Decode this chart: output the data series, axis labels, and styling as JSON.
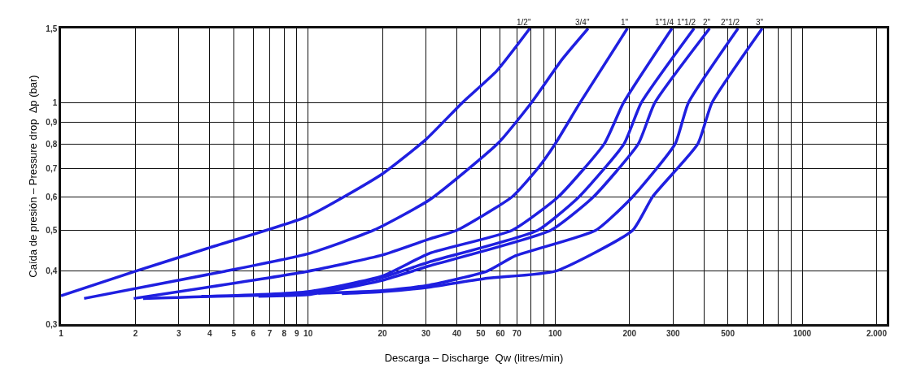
{
  "chart_data": {
    "type": "line",
    "xlabel": "Descarga – Discharge  Qw (litres/min)",
    "ylabel": "Caída de presión – Pressure drop  Δp (bar)",
    "log": "xy",
    "grid": true,
    "legend": false,
    "marker": "none",
    "line_style": "solid",
    "xlim": [
      1,
      2200
    ],
    "ylim": [
      0.3,
      1.5
    ],
    "xticks": [
      1,
      2,
      3,
      4,
      5,
      6,
      7,
      8,
      9,
      10,
      20,
      30,
      40,
      50,
      60,
      70,
      {
        "value": 80,
        "label": null
      },
      {
        "value": 90,
        "label": null
      },
      100,
      200,
      300,
      {
        "value": 400,
        "label": null
      },
      500,
      {
        "value": 600,
        "label": null
      },
      {
        "value": 700,
        "label": null
      },
      {
        "value": 800,
        "label": null
      },
      {
        "value": 900,
        "label": null
      },
      1000,
      {
        "value": 2000,
        "label": "2.000"
      }
    ],
    "yticks": [
      {
        "value": 0.3,
        "label": "0,3"
      },
      {
        "value": 0.4,
        "label": "0,4"
      },
      {
        "value": 0.5,
        "label": "0,5"
      },
      {
        "value": 0.6,
        "label": "0,6"
      },
      {
        "value": 0.7,
        "label": "0,7"
      },
      {
        "value": 0.8,
        "label": "0,8"
      },
      {
        "value": 0.9,
        "label": "0,9"
      },
      1,
      {
        "value": 1.5,
        "label": "1,5"
      }
    ],
    "series": [
      {
        "name": "1/2\"",
        "color": "#1f1fe0",
        "x": [
          1,
          2,
          4,
          10,
          20,
          30,
          42,
          58,
          79
        ],
        "values": [
          0.35,
          0.4,
          0.455,
          0.54,
          0.68,
          0.82,
          1.0,
          1.19,
          1.5
        ]
      },
      {
        "name": "3/4\"",
        "color": "#1f1fe0",
        "x": [
          1.24,
          4.6,
          10,
          18.4,
          31,
          59,
          80,
          107,
          136
        ],
        "values": [
          0.345,
          0.4,
          0.44,
          0.5,
          0.59,
          0.805,
          1.0,
          1.27,
          1.5
        ]
      },
      {
        "name": "1\"",
        "color": "#1f1fe0",
        "x": [
          1.97,
          10,
          20,
          31,
          40,
          67,
          85,
          100,
          126,
          196
        ],
        "values": [
          0.345,
          0.4,
          0.437,
          0.477,
          0.5,
          0.6,
          0.7,
          0.8,
          1.0,
          1.5
        ]
      },
      {
        "name": "1\"1/4",
        "color": "#1f1fe0",
        "x": [
          2.15,
          10,
          20,
          31,
          67,
          103,
          158,
          189,
          297
        ],
        "values": [
          0.345,
          0.358,
          0.39,
          0.441,
          0.5,
          0.6,
          0.8,
          1.0,
          1.5
        ]
      },
      {
        "name": "1\"1/2",
        "color": "#1f1fe0",
        "x": [
          3.7,
          10,
          20,
          31,
          85,
          125,
          190,
          223,
          365
        ],
        "values": [
          0.349,
          0.355,
          0.387,
          0.421,
          0.5,
          0.6,
          0.8,
          1.0,
          1.5
        ]
      },
      {
        "name": "2\"",
        "color": "#1f1fe0",
        "x": [
          6.3,
          10,
          20,
          31,
          96,
          143,
          217,
          253,
          422
        ],
        "values": [
          0.349,
          0.352,
          0.381,
          0.412,
          0.5,
          0.6,
          0.8,
          1.0,
          1.5
        ]
      },
      {
        "name": "2\"1/2",
        "color": "#1f1fe0",
        "x": [
          11,
          20,
          31,
          53,
          69,
          146,
          206,
          306,
          346,
          550
        ],
        "values": [
          0.355,
          0.36,
          0.371,
          0.4,
          0.435,
          0.5,
          0.6,
          0.8,
          1.0,
          1.5
        ]
      },
      {
        "name": "3\"",
        "color": "#1f1fe0",
        "x": [
          13.7,
          20,
          31,
          53,
          100,
          206,
          248,
          378,
          431,
          689
        ],
        "values": [
          0.354,
          0.358,
          0.367,
          0.385,
          0.4,
          0.5,
          0.6,
          0.8,
          1.0,
          1.5
        ]
      }
    ]
  }
}
